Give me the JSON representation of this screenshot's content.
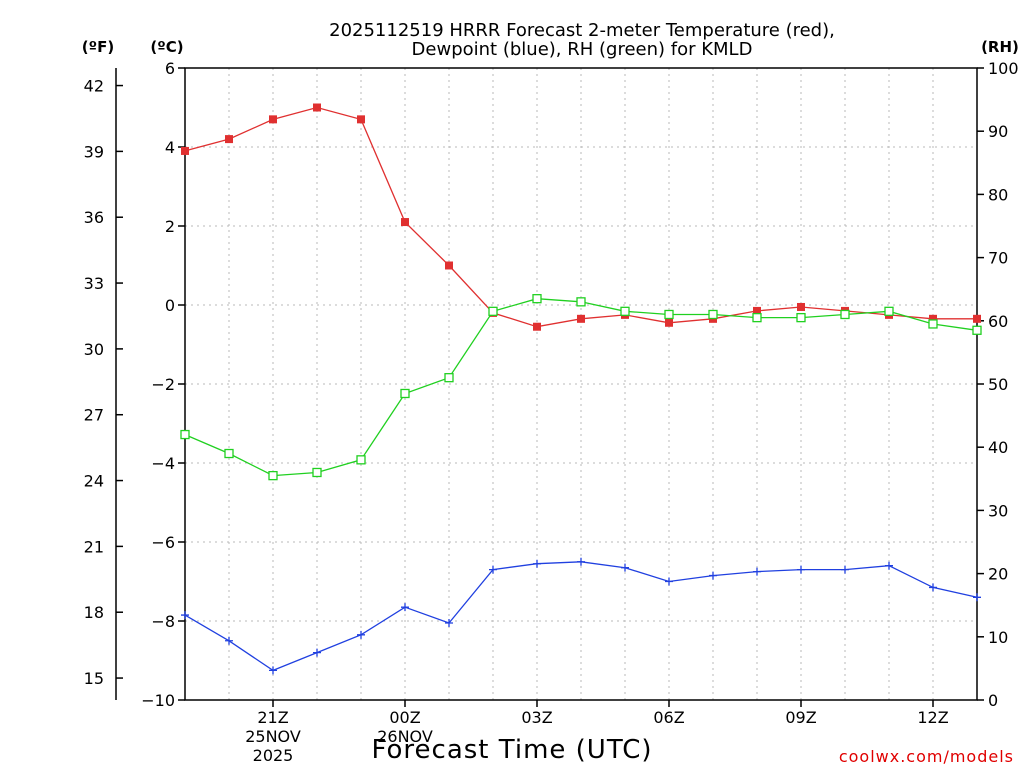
{
  "chart_data": {
    "type": "line",
    "title_line1": "2025112519 HRRR Forecast 2-meter Temperature (red),",
    "title_line2": "Dewpoint (blue), RH (green) for KMLD",
    "xlabel": "Forecast Time (UTC)",
    "credit": "coolwx.com/models",
    "left_outer_unit": "(ºF)",
    "left_inner_unit": "(ºC)",
    "right_unit": "(RH)",
    "hours": [
      19,
      20,
      21,
      22,
      23,
      24,
      25,
      26,
      27,
      28,
      29,
      30,
      31,
      32,
      33,
      34,
      35,
      36,
      37
    ],
    "x_range": [
      19,
      37
    ],
    "x_ticks": [
      {
        "hour": 21,
        "label": "21Z",
        "sub1": "25NOV",
        "sub2": "2025"
      },
      {
        "hour": 24,
        "label": "00Z",
        "sub1": "26NOV",
        "sub2": ""
      },
      {
        "hour": 27,
        "label": "03Z",
        "sub1": "",
        "sub2": ""
      },
      {
        "hour": 30,
        "label": "06Z",
        "sub1": "",
        "sub2": ""
      },
      {
        "hour": 33,
        "label": "09Z",
        "sub1": "",
        "sub2": ""
      },
      {
        "hour": 36,
        "label": "12Z",
        "sub1": "",
        "sub2": ""
      }
    ],
    "celsius_axis": {
      "ylim": [
        -10,
        6
      ],
      "ticks": [
        6,
        4,
        2,
        0,
        -2,
        -4,
        -6,
        -8,
        -10
      ]
    },
    "fahrenheit_axis": {
      "ticks": [
        42,
        39,
        36,
        33,
        30,
        27,
        24,
        21,
        18,
        15
      ]
    },
    "rh_axis": {
      "ylim": [
        0,
        100
      ],
      "ticks": [
        100,
        90,
        80,
        70,
        60,
        50,
        40,
        30,
        20,
        10,
        0
      ]
    },
    "series": [
      {
        "name": "Temperature",
        "axis": "celsius",
        "color": "#e03030",
        "marker": "filled-square",
        "values": [
          3.9,
          4.2,
          4.7,
          5.0,
          4.7,
          2.1,
          1.0,
          -0.2,
          -0.55,
          -0.35,
          -0.25,
          -0.45,
          -0.35,
          -0.15,
          -0.05,
          -0.15,
          -0.25,
          -0.35,
          -0.35
        ]
      },
      {
        "name": "Dewpoint",
        "axis": "celsius",
        "color": "#2040e0",
        "marker": "plus",
        "values": [
          -7.85,
          -8.5,
          -9.25,
          -8.8,
          -8.35,
          -7.65,
          -8.05,
          -6.7,
          -6.55,
          -6.5,
          -6.65,
          -7.0,
          -6.85,
          -6.75,
          -6.7,
          -6.7,
          -6.6,
          -7.15,
          -7.4
        ]
      },
      {
        "name": "RH",
        "axis": "rh",
        "color": "#20d020",
        "marker": "open-square",
        "values": [
          42,
          39,
          35.5,
          36,
          38,
          48.5,
          51,
          61.5,
          63.5,
          63,
          61.5,
          61,
          61,
          60.5,
          60.5,
          61,
          61.5,
          59.5,
          58.5
        ]
      }
    ]
  }
}
